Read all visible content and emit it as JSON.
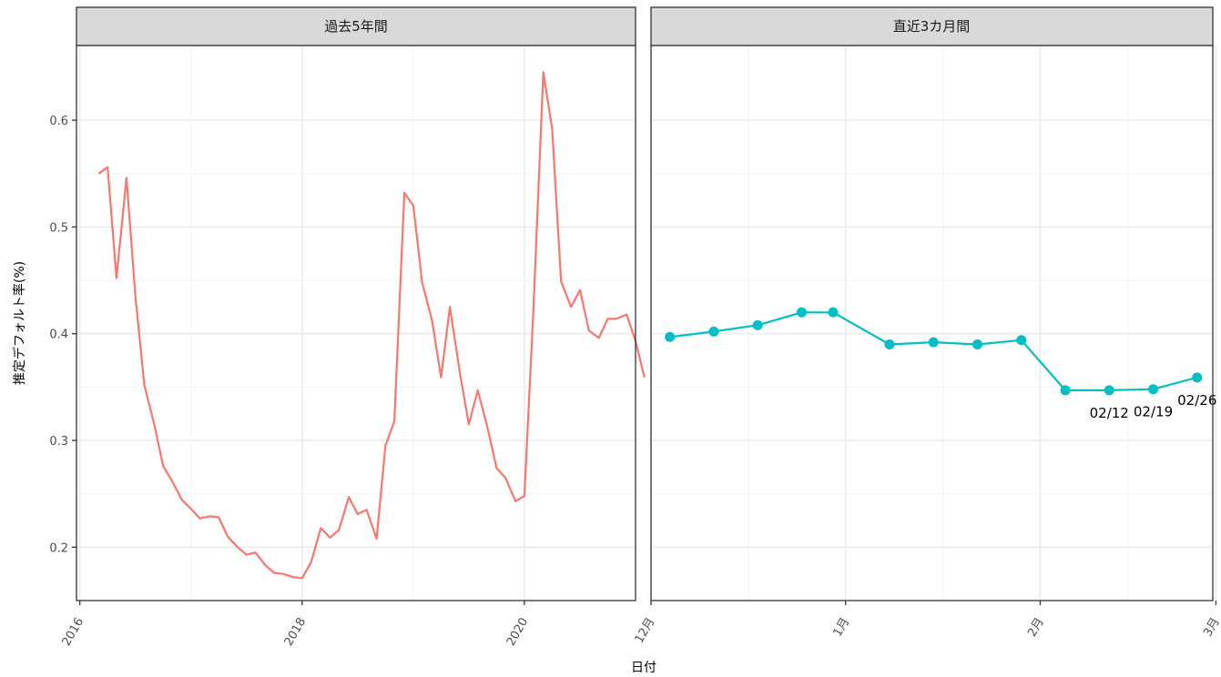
{
  "chart_data": {
    "type": "line",
    "ylabel": "推定デフォルト率(%)",
    "xlabel": "日付",
    "ylim": [
      0.15,
      0.67
    ],
    "y_ticks": [
      0.2,
      0.3,
      0.4,
      0.5,
      0.6
    ],
    "y_tick_labels": [
      "0.2",
      "0.3",
      "0.4",
      "0.5",
      "0.6"
    ],
    "grid": true,
    "panels": [
      {
        "title": "過去5年間",
        "x_range": [
          2015.97,
          2021.0
        ],
        "x_ticks": [
          2016,
          2018,
          2020
        ],
        "x_tick_labels": [
          "2016",
          "2018",
          "2020"
        ],
        "series": [
          {
            "color": "#F8766D",
            "x": [
              2016.17,
              2016.25,
              2016.33,
              2016.42,
              2016.5,
              2016.58,
              2016.67,
              2016.75,
              2016.83,
              2016.92,
              2017.0,
              2017.08,
              2017.17,
              2017.25,
              2017.33,
              2017.42,
              2017.5,
              2017.58,
              2017.67,
              2017.75,
              2017.83,
              2017.92,
              2018.0,
              2018.08,
              2018.17,
              2018.25,
              2018.33,
              2018.42,
              2018.5,
              2018.58,
              2018.67,
              2018.75,
              2018.83,
              2018.92,
              2019.0,
              2019.08,
              2019.17,
              2019.25,
              2019.33,
              2019.42,
              2019.5,
              2019.58,
              2019.67,
              2019.75,
              2019.83,
              2019.92,
              2020.0,
              2020.08,
              2020.17,
              2020.25,
              2020.33,
              2020.42,
              2020.5,
              2020.58,
              2020.67,
              2020.75,
              2020.83,
              2020.92,
              2021.0,
              2021.08
            ],
            "values": [
              0.55,
              0.556,
              0.452,
              0.546,
              0.435,
              0.352,
              0.315,
              0.276,
              0.262,
              0.244,
              0.236,
              0.227,
              0.229,
              0.228,
              0.21,
              0.2,
              0.193,
              0.195,
              0.183,
              0.176,
              0.175,
              0.172,
              0.171,
              0.186,
              0.218,
              0.209,
              0.216,
              0.247,
              0.231,
              0.235,
              0.208,
              0.295,
              0.318,
              0.532,
              0.52,
              0.448,
              0.412,
              0.359,
              0.425,
              0.363,
              0.315,
              0.347,
              0.311,
              0.274,
              0.265,
              0.243,
              0.248,
              0.42,
              0.645,
              0.592,
              0.449,
              0.425,
              0.441,
              0.403,
              0.396,
              0.414,
              0.414,
              0.418,
              0.393,
              0.359
            ]
          }
        ]
      },
      {
        "title": "直近3カ月間",
        "x_range": [
          0,
          89.5
        ],
        "x_ticks": [
          0,
          31,
          62,
          90
        ],
        "x_tick_labels": [
          "12月",
          "1月",
          "2月",
          "3月"
        ],
        "series": [
          {
            "color": "#00BFC4",
            "x": [
              3,
              10,
              17,
              24,
              29,
              38,
              45,
              52,
              59,
              66,
              73,
              80,
              87
            ],
            "values": [
              0.397,
              0.402,
              0.408,
              0.42,
              0.42,
              0.39,
              0.392,
              0.39,
              0.394,
              0.347,
              0.347,
              0.348,
              0.359
            ]
          }
        ],
        "point_labels": [
          {
            "x": 73,
            "value": 0.347,
            "text": "02/12"
          },
          {
            "x": 80,
            "value": 0.348,
            "text": "02/19"
          },
          {
            "x": 87,
            "value": 0.359,
            "text": "02/26"
          }
        ]
      }
    ]
  }
}
